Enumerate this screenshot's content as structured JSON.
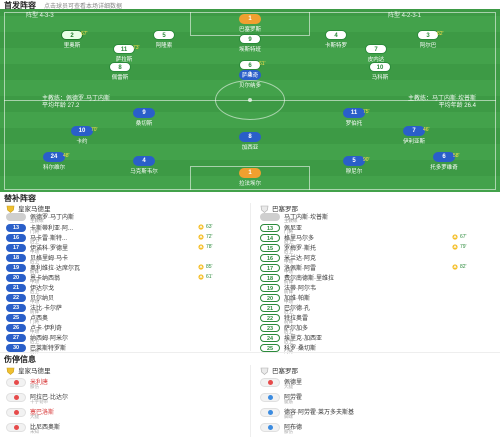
{
  "header": {
    "title": "首发阵容",
    "subtitle": "点击球员可查看本场详细数据"
  },
  "pitch": {
    "home_team_label": "阵型 4-3-3",
    "away_team_label": "阵型 4-2-3-1",
    "home_coach": "主教练：佩德罗·马丁内斯",
    "home_formation_note": "平均年龄 27.2",
    "away_coach": "主教练：马丁内斯·坎普斯",
    "away_formation_note": "平均年龄 26.4",
    "center_label": "首发阵容",
    "home_players": [
      {
        "num": "1",
        "name": "拉法埃尔",
        "color": "orange",
        "ev": ""
      },
      {
        "num": "24",
        "name": "科尔维尔",
        "color": "blue",
        "ev": "48'"
      },
      {
        "num": "4",
        "name": "马克斯韦尔",
        "color": "blue",
        "ev": ""
      },
      {
        "num": "5",
        "name": "穆尼尔",
        "color": "blue",
        "ev": "90'"
      },
      {
        "num": "6",
        "name": "托多罗维奇",
        "color": "blue",
        "ev": "58'"
      },
      {
        "num": "10",
        "name": "卡约",
        "color": "blue",
        "ev": "70'"
      },
      {
        "num": "8",
        "name": "加西亚",
        "color": "blue",
        "ev": ""
      },
      {
        "num": "7",
        "name": "伊利亚斯",
        "color": "blue",
        "ev": "46'"
      },
      {
        "num": "9",
        "name": "桑切斯",
        "color": "blue",
        "ev": ""
      },
      {
        "num": "11",
        "name": "罗伯托",
        "color": "blue",
        "ev": "75'"
      },
      {
        "num": "3",
        "name": "贝尔纳多",
        "color": "blue",
        "ev": ""
      }
    ],
    "away_players": [
      {
        "num": "1",
        "name": "巴塞罗斯",
        "color": "orange",
        "ev": ""
      },
      {
        "num": "2",
        "name": "里奥斯",
        "color": "gk-white",
        "ev": "67'"
      },
      {
        "num": "5",
        "name": "阿隆索",
        "color": "white",
        "ev": ""
      },
      {
        "num": "4",
        "name": "卡斯特罗",
        "color": "white",
        "ev": ""
      },
      {
        "num": "3",
        "name": "阿尔巴",
        "color": "white",
        "ev": "82'"
      },
      {
        "num": "8",
        "name": "佩雷斯",
        "color": "white",
        "ev": ""
      },
      {
        "num": "6",
        "name": "萨维奇",
        "color": "white",
        "ev": "61'"
      },
      {
        "num": "10",
        "name": "马科斯",
        "color": "white",
        "ev": ""
      },
      {
        "num": "11",
        "name": "萨拉斯",
        "color": "white",
        "ev": "73'"
      },
      {
        "num": "7",
        "name": "皮内达",
        "color": "white",
        "ev": ""
      },
      {
        "num": "9",
        "name": "埃斯特班",
        "color": "white",
        "ev": ""
      }
    ]
  },
  "subs": {
    "title": "替补阵容",
    "home_team": "皇家马德里",
    "away_team": "巴塞罗那",
    "home_coach_row": {
      "name": "佩德罗·马丁内斯",
      "role": "主教练"
    },
    "away_coach_row": {
      "name": "马丁内斯·坎普斯",
      "role": "主教练"
    },
    "home": [
      {
        "num": "13",
        "name": "卡斯蒂利亚·阿...",
        "pos": "门将",
        "ev": "63'"
      },
      {
        "num": "16",
        "name": "马卡雷·斯特...",
        "pos": "后卫",
        "ev": "72'"
      },
      {
        "num": "17",
        "name": "伊诺科·罗德里",
        "pos": "中场",
        "ev": "78'"
      },
      {
        "num": "18",
        "name": "贝格里姆·马卡",
        "pos": "后卫",
        "ev": ""
      },
      {
        "num": "19",
        "name": "奥利维拉·达席尔瓦",
        "pos": "前锋",
        "ev": "85'"
      },
      {
        "num": "20",
        "name": "恩卡纳西翁",
        "pos": "中场",
        "ev": "61'"
      },
      {
        "num": "21",
        "name": "伊达尔戈",
        "pos": "后卫",
        "ev": ""
      },
      {
        "num": "22",
        "name": "贝尔纳贝",
        "pos": "中场",
        "ev": ""
      },
      {
        "num": "23",
        "name": "法比·卡尔萨",
        "pos": "前锋",
        "ev": ""
      },
      {
        "num": "25",
        "name": "卢西奥",
        "pos": "门将",
        "ev": ""
      },
      {
        "num": "26",
        "name": "卢卡·伊利奇",
        "pos": "中场",
        "ev": ""
      },
      {
        "num": "27",
        "name": "纳西姆·阿米尔",
        "pos": "后卫",
        "ev": ""
      },
      {
        "num": "30",
        "name": "巴莱斯特罗斯",
        "pos": "前锋",
        "ev": ""
      }
    ],
    "away": [
      {
        "num": "13",
        "name": "佩尼亚",
        "pos": "门将",
        "ev": ""
      },
      {
        "num": "14",
        "name": "格里马尔多",
        "pos": "后卫",
        "ev": "67'"
      },
      {
        "num": "15",
        "name": "罗梅罗·斯托",
        "pos": "后卫",
        "ev": "79'"
      },
      {
        "num": "16",
        "name": "米兰达·阿克",
        "pos": "中场",
        "ev": ""
      },
      {
        "num": "17",
        "name": "洛佩斯·阿雷",
        "pos": "中场",
        "ev": "82'"
      },
      {
        "num": "18",
        "name": "费尔南德斯·里维拉",
        "pos": "前锋",
        "ev": ""
      },
      {
        "num": "19",
        "name": "法蒂·阿尔韦",
        "pos": "前锋",
        "ev": ""
      },
      {
        "num": "20",
        "name": "加维·帕斯",
        "pos": "中场",
        "ev": ""
      },
      {
        "num": "21",
        "name": "巴尔德·孔",
        "pos": "后卫",
        "ev": ""
      },
      {
        "num": "22",
        "name": "特拉奥雷",
        "pos": "前锋",
        "ev": ""
      },
      {
        "num": "23",
        "name": "萨尔加多",
        "pos": "后卫",
        "ev": ""
      },
      {
        "num": "24",
        "name": "埃里克·加西亚",
        "pos": "后卫",
        "ev": ""
      },
      {
        "num": "25",
        "name": "科罗·桑切斯",
        "pos": "门将",
        "ev": ""
      }
    ]
  },
  "injuries": {
    "title": "伤停信息",
    "home_team": "皇家马德里",
    "away_team": "巴塞罗那",
    "home": [
      {
        "name": "米利唐",
        "reason": "膝伤",
        "color": "red"
      },
      {
        "name": "阿拉巴·比达尔",
        "reason": "十字韧带",
        "color": "gray"
      },
      {
        "name": "塞巴洛斯",
        "reason": "大腿",
        "color": "red"
      },
      {
        "name": "比尼西奥斯",
        "reason": "未知",
        "color": "gray"
      }
    ],
    "away": [
      {
        "name": "佩德里",
        "reason": "大腿",
        "color": "gray"
      },
      {
        "name": "阿劳霍",
        "reason": "腿筋",
        "color": "blue"
      },
      {
        "name": "德容·阿劳霍·莱万多夫斯基",
        "reason": "脚踝",
        "color": "blue"
      },
      {
        "name": "阿布德",
        "reason": "膝伤",
        "color": "blue"
      }
    ]
  }
}
